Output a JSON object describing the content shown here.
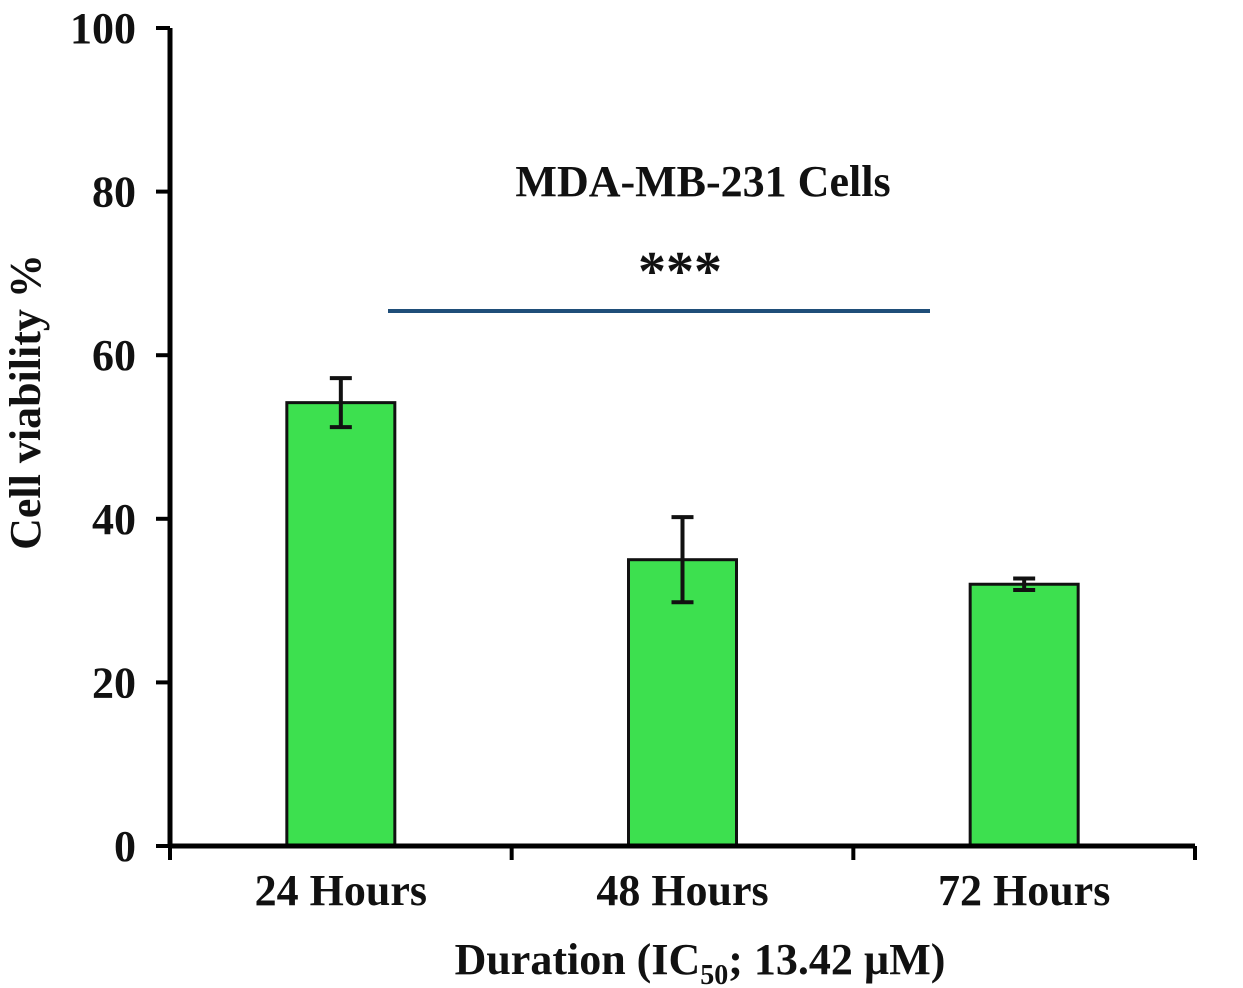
{
  "chart_data": {
    "type": "bar",
    "title": "MDA-MB-231 Cells",
    "categories": [
      "24 Hours",
      "48 Hours",
      "72 Hours"
    ],
    "values": [
      54.2,
      35.0,
      32.0
    ],
    "errors": [
      3.0,
      5.2,
      0.7
    ],
    "ylabel": "Cell viability %",
    "xlabel": {
      "prefix": "Duration (IC",
      "subscript": "50",
      "suffix": "; 13.42 µM)"
    },
    "ylim": [
      0,
      100
    ],
    "yticks": [
      "0",
      "20",
      "40",
      "60",
      "80",
      "100"
    ],
    "significance": "***",
    "colors": {
      "bar": "#3de04f",
      "bar_edge": "#111111",
      "significance_line": "#1f4e79",
      "axis": "#000000"
    },
    "grid": false,
    "legend": "none"
  }
}
